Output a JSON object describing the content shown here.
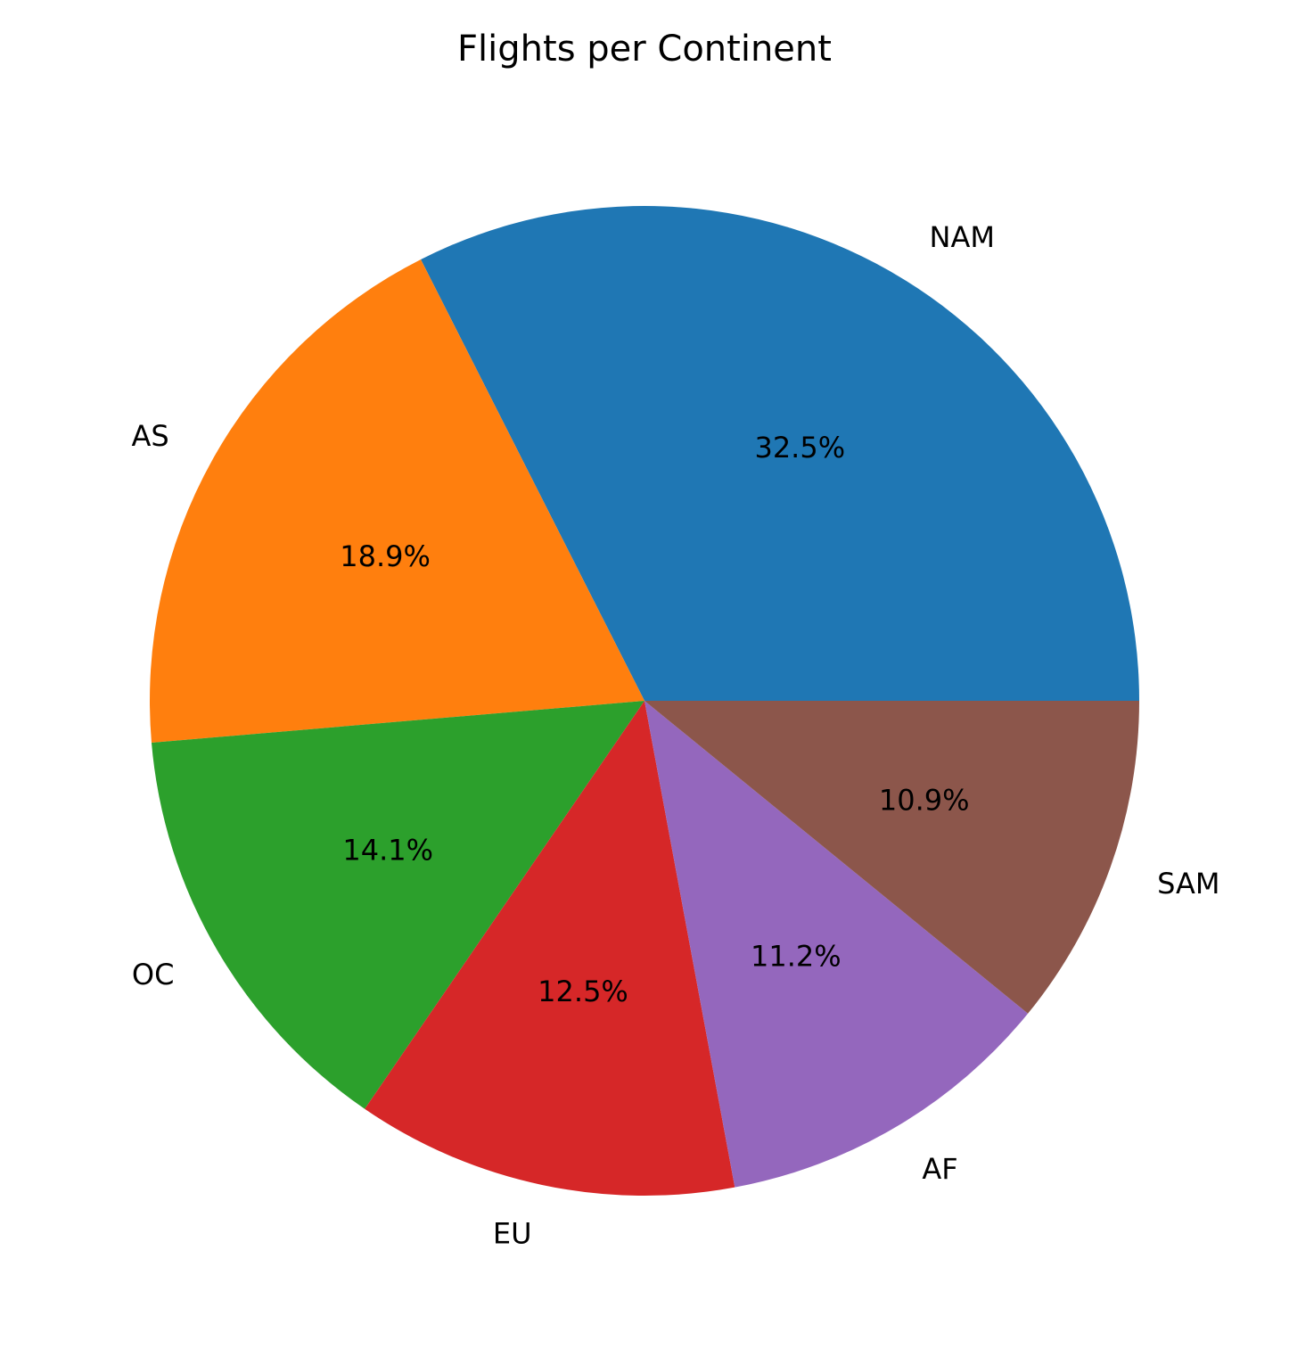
{
  "chart_data": {
    "type": "pie",
    "title": "Flights per Continent",
    "categories": [
      "NAM",
      "AS",
      "OC",
      "EU",
      "AF",
      "SAM"
    ],
    "values": [
      32.5,
      18.9,
      14.1,
      12.5,
      11.2,
      10.9
    ],
    "value_labels": [
      "32.5%",
      "18.9%",
      "14.1%",
      "12.5%",
      "11.2%",
      "10.9%"
    ],
    "colors": [
      "#1f77b4",
      "#ff7f0e",
      "#2ca02c",
      "#d62728",
      "#9467bd",
      "#8c564b"
    ],
    "start_angle_deg": 0,
    "direction": "counterclockwise",
    "legend": "none"
  }
}
